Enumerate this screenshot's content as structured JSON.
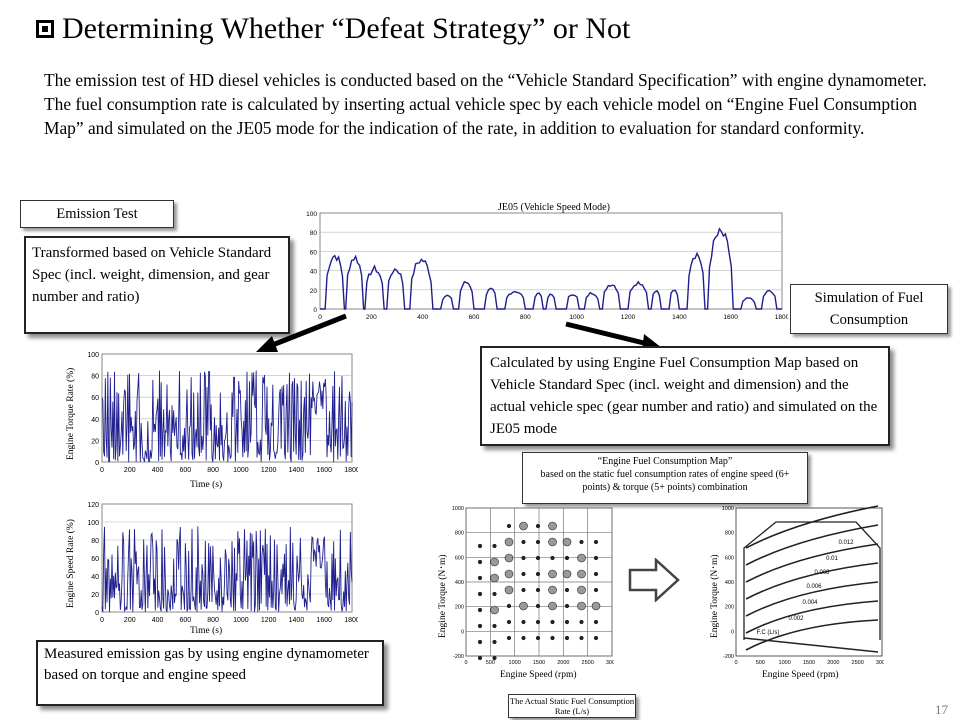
{
  "slide": {
    "title": "Determining Whether “Defeat Strategy” or Not",
    "intro": "The emission test of HD diesel vehicles is conducted based on the “Vehicle Standard Specification” with engine dynamometer.  The fuel consumption rate is calculated by inserting actual vehicle spec by each vehicle model on “Engine Fuel Consumption Map” and simulated on the JE05 mode for the indication of the rate, in addition to evaluation for standard conformity.",
    "page_number": "17"
  },
  "emission_test": {
    "label": "Emission Test",
    "transform_note": "Transformed based on Vehicle Standard Spec (incl.  weight, dimension, and gear number and ratio)",
    "measured_note": "Measured emission gas by using engine dynamometer based on torque and engine speed"
  },
  "simulation": {
    "label": "Simulation of Fuel Consumption",
    "calc_note": "Calculated by using Engine Fuel Consumption Map based on Vehicle Standard Spec (incl. weight and dimension) and the actual vehicle spec (gear number and ratio) and simulated on the JE05 mode",
    "map_title": "“Engine Fuel Consumption Map”",
    "map_desc": "based on the static fuel consumption rates of engine speed (6+ points) & torque (5+ points) combination",
    "static_rate_label": "The Actual Static Fuel Consumption Rate (L/s)"
  },
  "je05_chart": {
    "title": "JE05 (Vehicle Speed Mode)",
    "y_ticks": [
      "0",
      "20",
      "40",
      "60",
      "80",
      "100"
    ],
    "x_ticks": [
      "0",
      "200",
      "400",
      "600",
      "800",
      "1000",
      "1200",
      "1400",
      "1600",
      "1800"
    ]
  },
  "torque_chart": {
    "ylabel": "Engine Torque Rate (%)",
    "xlabel": "Time (s)",
    "y_ticks": [
      "0",
      "20",
      "40",
      "60",
      "80",
      "100"
    ],
    "x_ticks": [
      "0",
      "200",
      "400",
      "600",
      "800",
      "1000",
      "1200",
      "1400",
      "1600",
      "1800"
    ]
  },
  "speed_chart": {
    "ylabel": "Engine Speed Rate (%)",
    "xlabel": "Time (s)",
    "y_ticks": [
      "0",
      "20",
      "40",
      "60",
      "80",
      "100",
      "120"
    ],
    "x_ticks": [
      "0",
      "200",
      "400",
      "600",
      "800",
      "1000",
      "1200",
      "1400",
      "1600",
      "1800"
    ]
  },
  "map_left": {
    "ylabel": "Engine Torque (N･m)",
    "xlabel": "Engine Speed (rpm)",
    "y_ticks": [
      "1000",
      "800",
      "600",
      "400",
      "200",
      "0",
      "-200"
    ],
    "x_ticks": [
      "0",
      "500",
      "1000",
      "1500",
      "2000",
      "2500",
      "3000"
    ]
  },
  "map_right": {
    "ylabel": "Engine Torque (N･m)",
    "xlabel": "Engine Speed (rpm)",
    "y_ticks": [
      "1000",
      "800",
      "600",
      "400",
      "200",
      "0",
      "-200"
    ],
    "x_ticks": [
      "0",
      "500",
      "1000",
      "1500",
      "2000",
      "2500",
      "3000"
    ],
    "contour_labels": [
      "0.012",
      "0.01",
      "0.008",
      "0.006",
      "0.004",
      "0.002",
      "F.C (L/s)"
    ]
  },
  "colors": {
    "series": "#1f1f8f",
    "border": "#222222"
  }
}
